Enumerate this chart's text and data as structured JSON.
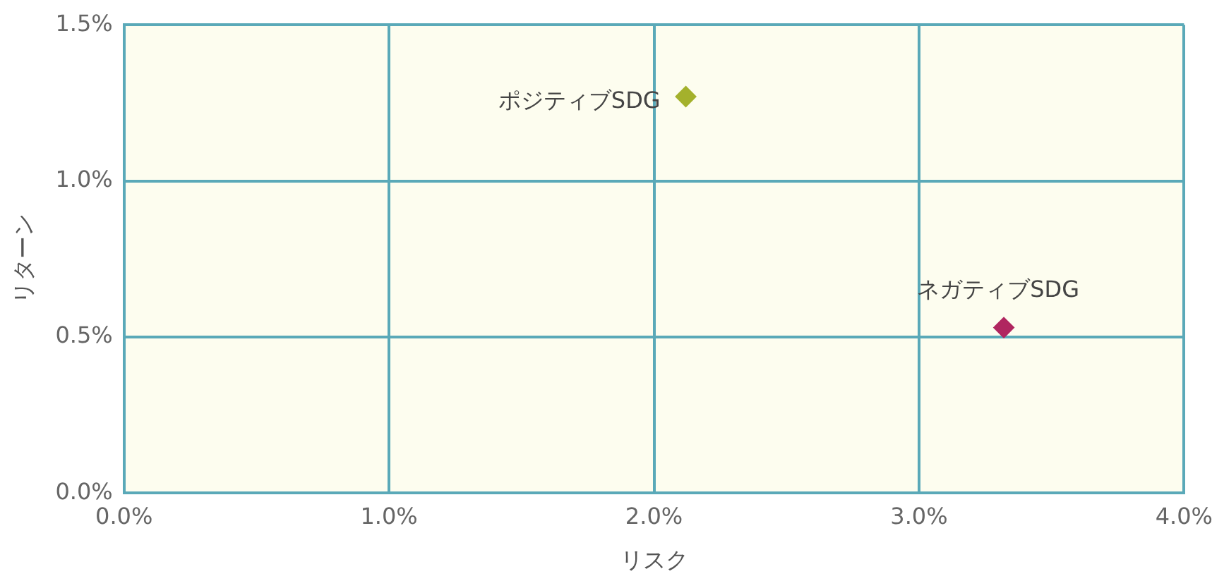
{
  "chart_data": {
    "type": "scatter",
    "xlabel": "リスク",
    "ylabel": "リターン",
    "xlim": [
      0,
      4
    ],
    "ylim": [
      0,
      1.5
    ],
    "xticks": [
      {
        "value": 0,
        "label": "0.0%"
      },
      {
        "value": 1,
        "label": "1.0%"
      },
      {
        "value": 2,
        "label": "2.0%"
      },
      {
        "value": 3,
        "label": "3.0%"
      },
      {
        "value": 4,
        "label": "4.0%"
      }
    ],
    "yticks": [
      {
        "value": 0,
        "label": "0.0%"
      },
      {
        "value": 0.5,
        "label": "0.5%"
      },
      {
        "value": 1,
        "label": "1.0%"
      },
      {
        "value": 1.5,
        "label": "1.5%"
      }
    ],
    "series": [
      {
        "name": "ポジティブSDG",
        "color": "#a4b12c",
        "x": [
          2.12
        ],
        "values": [
          1.27
        ]
      },
      {
        "name": "ネガティブSDG",
        "color": "#b02660",
        "x": [
          3.32
        ],
        "values": [
          0.53
        ]
      }
    ],
    "grid": true,
    "legend": false,
    "marker": "diamond"
  }
}
